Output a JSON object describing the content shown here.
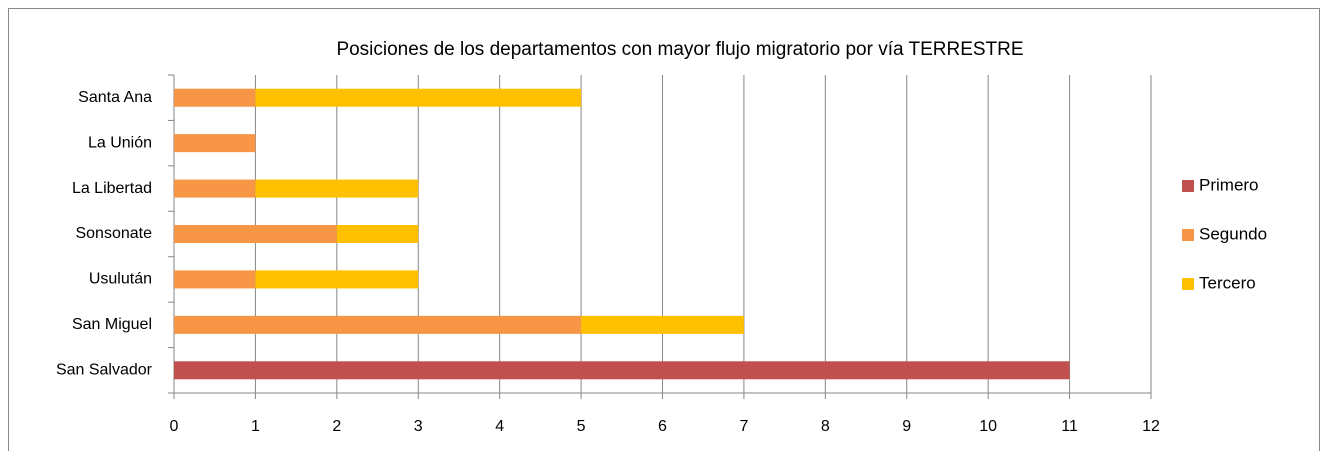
{
  "chart_data": {
    "type": "stacked-barh",
    "title": "Posiciones de los departamentos con mayor flujo migratorio por vía TERRESTRE",
    "categories": [
      "San Salvador",
      "San Miguel",
      "Usulután",
      "Sonsonate",
      "La Libertad",
      "La Unión",
      "Santa Ana"
    ],
    "series": [
      {
        "name": "Primero",
        "color": "#c0504d",
        "values": [
          11,
          0,
          0,
          0,
          0,
          0,
          0
        ]
      },
      {
        "name": "Segundo",
        "color": "#f79646",
        "values": [
          0,
          5,
          1,
          2,
          1,
          1,
          1
        ]
      },
      {
        "name": "Tercero",
        "color": "#ffc000",
        "values": [
          0,
          2,
          2,
          1,
          2,
          0,
          4
        ]
      }
    ],
    "xlim": [
      0,
      12
    ],
    "xticks": [
      0,
      1,
      2,
      3,
      4,
      5,
      6,
      7,
      8,
      9,
      10,
      11,
      12
    ],
    "grid": true,
    "legend": "right"
  }
}
